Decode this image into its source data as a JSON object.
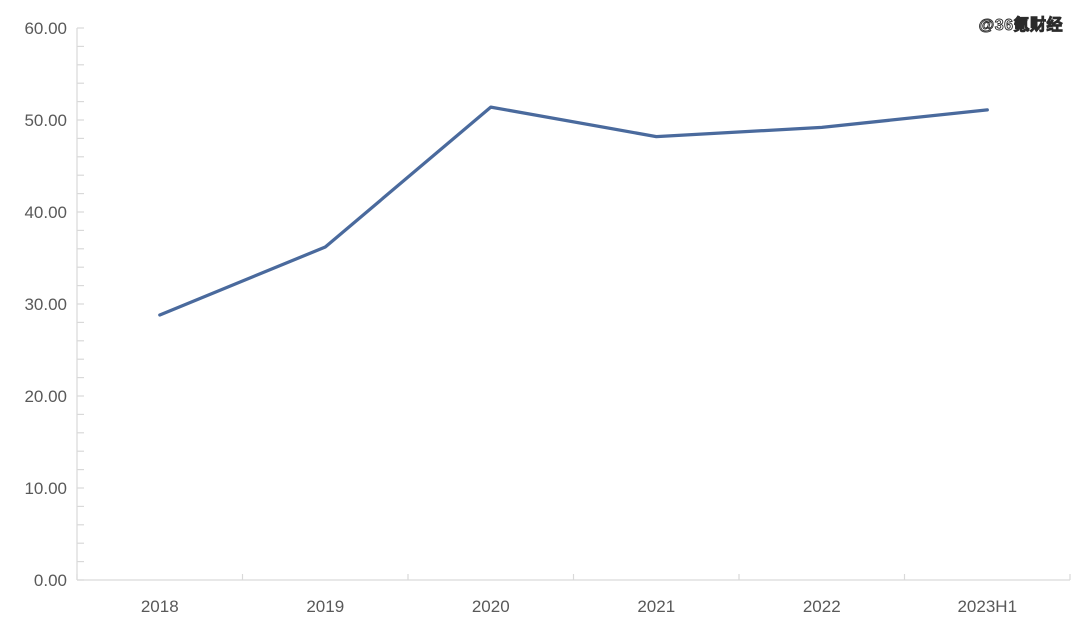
{
  "watermark": {
    "text": "@36氪财经"
  },
  "chart_data": {
    "type": "line",
    "title": "",
    "xlabel": "",
    "ylabel": "",
    "categories": [
      "2018",
      "2019",
      "2020",
      "2021",
      "2022",
      "2023H1"
    ],
    "series": [
      {
        "name": "value",
        "values": [
          28.8,
          36.2,
          51.4,
          48.2,
          49.2,
          51.1
        ],
        "color": "#4a6a9d"
      }
    ],
    "ylim": [
      0,
      60
    ],
    "y_major_step": 10,
    "y_minor_step": 2,
    "y_tick_labels": [
      "0.00",
      "10.00",
      "20.00",
      "30.00",
      "40.00",
      "50.00",
      "60.00"
    ],
    "grid": false,
    "legend": "none",
    "axis_color": "#d9d9d9",
    "label_color": "#595959",
    "background_color": "#ffffff"
  }
}
